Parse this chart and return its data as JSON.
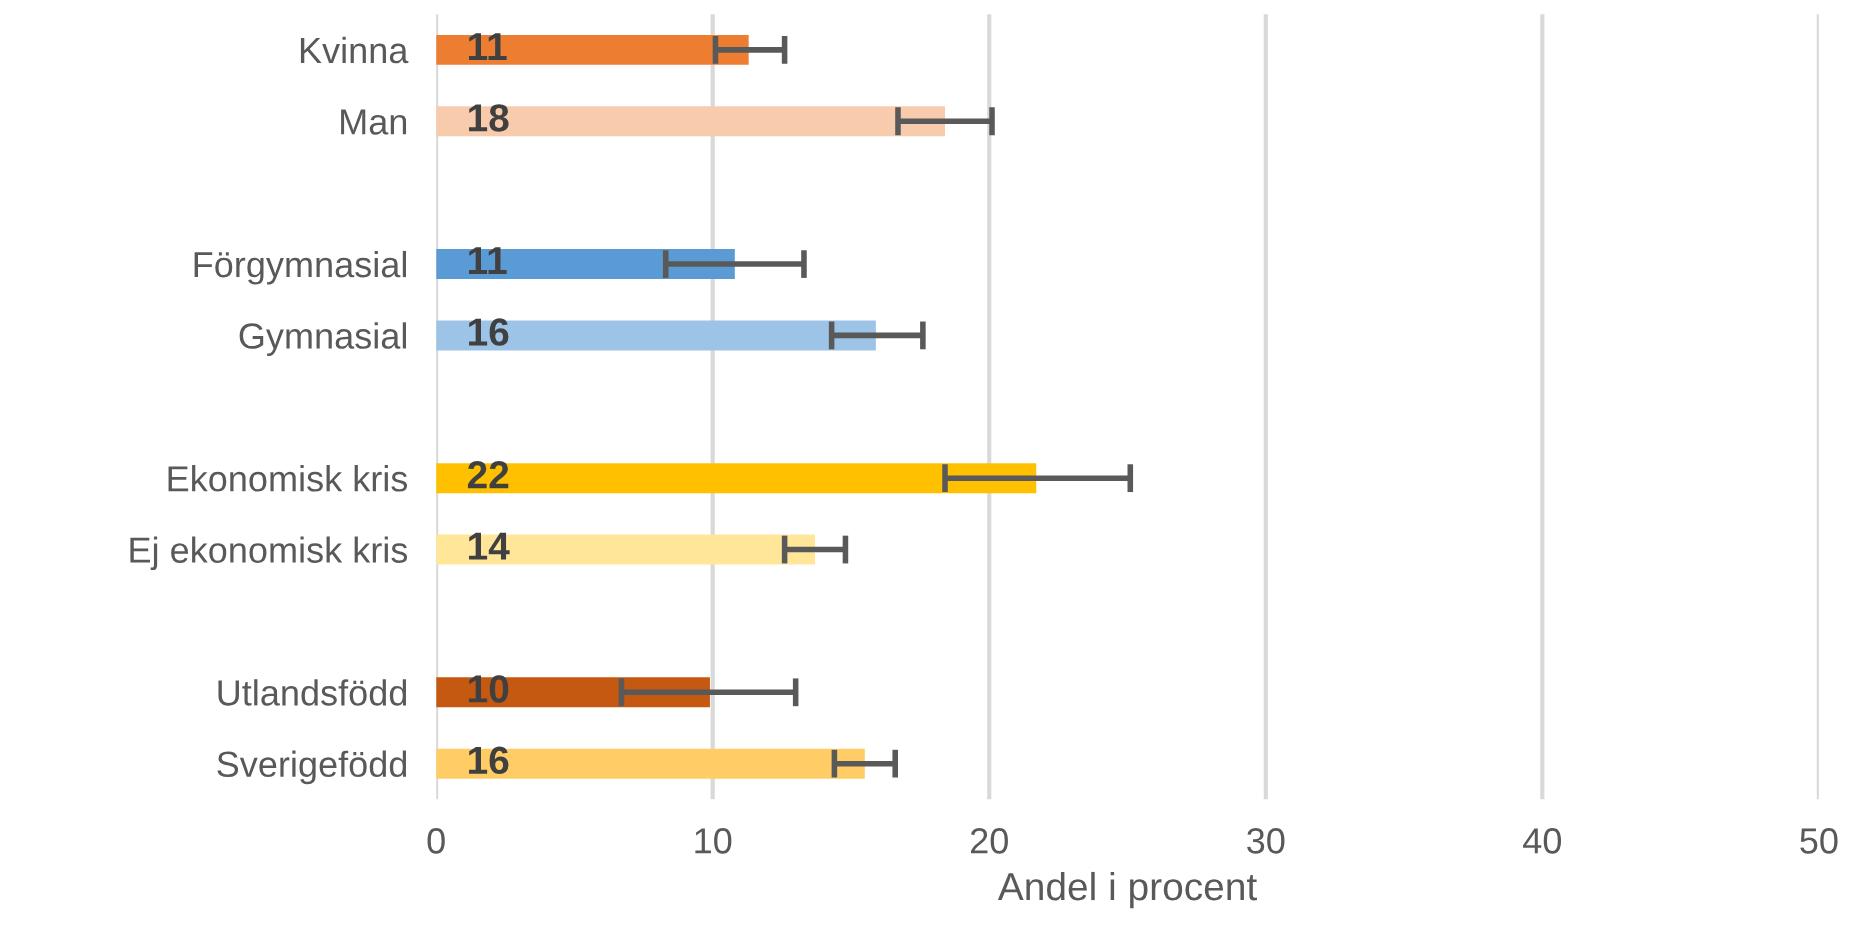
{
  "chart_data": {
    "type": "bar",
    "orientation": "horizontal",
    "xlabel": "Andel i procent",
    "categories": [
      "Kvinna",
      "Man",
      null,
      "Förgymnasial",
      "Gymnasial",
      null,
      "Ekonomisk kris",
      "Ej ekonomisk kris",
      null,
      "Utlandsfödd",
      "Sverigefödd"
    ],
    "values": [
      11.3,
      18.4,
      null,
      10.8,
      15.9,
      null,
      21.7,
      13.7,
      null,
      9.9,
      15.5
    ],
    "colors": [
      "#ed7d31",
      "#f8cbad",
      null,
      "#5b9bd5",
      "#9dc3e6",
      null,
      "#ffc000",
      "#ffe699",
      null,
      "#c65911",
      "#ffcc66"
    ],
    "errors": [
      [
        10.1,
        12.6
      ],
      [
        16.7,
        20.1
      ],
      null,
      [
        8.3,
        13.3
      ],
      [
        14.3,
        17.6
      ],
      null,
      [
        18.4,
        25.1
      ],
      [
        12.6,
        14.8
      ],
      null,
      [
        6.7,
        13.0
      ],
      [
        14.4,
        16.6
      ]
    ],
    "value_labels": [
      "11",
      "18",
      null,
      "11",
      "16",
      null,
      "22",
      "14",
      null,
      "10",
      "16"
    ],
    "xlim": [
      0,
      50
    ],
    "xticks": [
      0,
      10,
      20,
      30,
      40,
      50
    ],
    "grid": "x",
    "legend": false
  }
}
